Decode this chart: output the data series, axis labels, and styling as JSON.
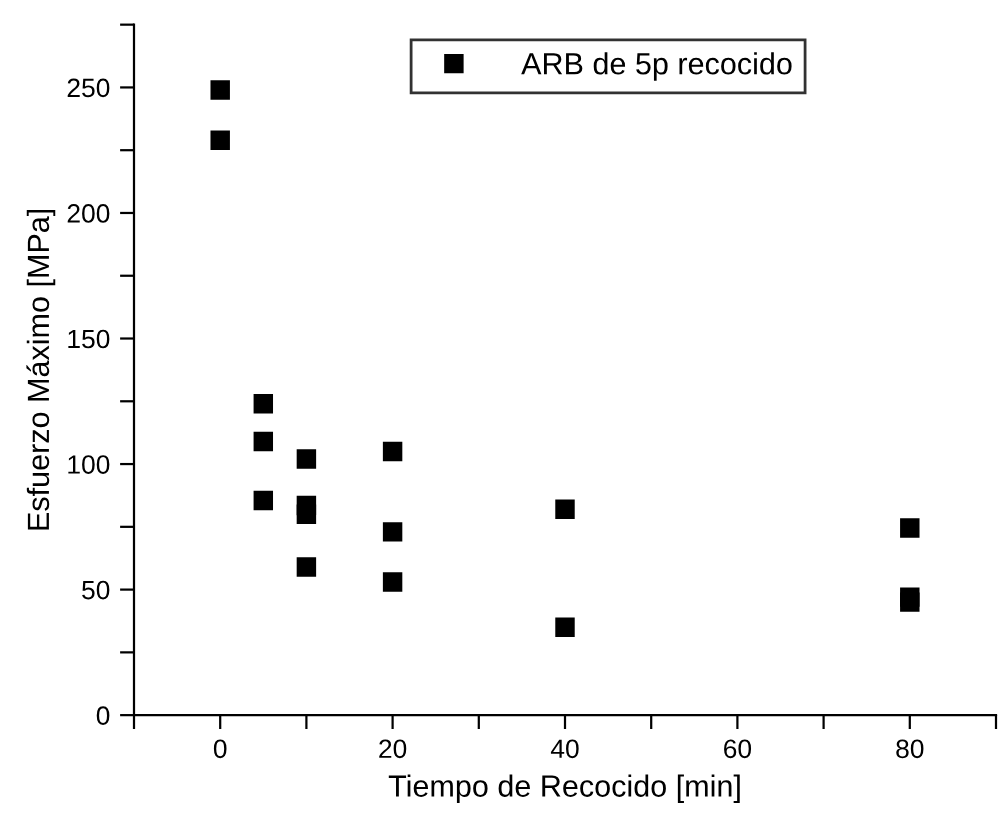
{
  "chart_data": {
    "type": "scatter",
    "xlabel": "Tiempo de Recocido [min]",
    "ylabel": "Esfuerzo Máximo [MPa]",
    "x": [
      0,
      0,
      5,
      5,
      5,
      10,
      10,
      10,
      10,
      20,
      20,
      20,
      40,
      40,
      80,
      80,
      80
    ],
    "series": [
      {
        "name": "ARB de 5p recocido",
        "color": "#000000",
        "values": [
          249,
          229,
          124,
          109,
          85.5,
          102,
          83.5,
          80,
          59,
          105,
          73,
          53,
          82,
          35,
          74.5,
          47,
          45
        ]
      }
    ],
    "xlim": [
      -10,
      90
    ],
    "xticks": [
      {
        "value": -10,
        "label": null
      },
      0,
      {
        "value": 10,
        "label": null
      },
      20,
      {
        "value": 30,
        "label": null
      },
      40,
      {
        "value": 50,
        "label": null
      },
      60,
      {
        "value": 70,
        "label": null
      },
      80,
      {
        "value": 90,
        "label": null
      }
    ],
    "ylim": [
      0,
      275
    ],
    "yticks": [
      0,
      {
        "value": 25,
        "label": null
      },
      50,
      {
        "value": 75,
        "label": null
      },
      100,
      {
        "value": 125,
        "label": null
      },
      150,
      {
        "value": 175,
        "label": null
      },
      200,
      {
        "value": 225,
        "label": null
      },
      250,
      {
        "value": 275,
        "label": null
      }
    ],
    "marker": "square",
    "legend": "top",
    "grid": false
  }
}
